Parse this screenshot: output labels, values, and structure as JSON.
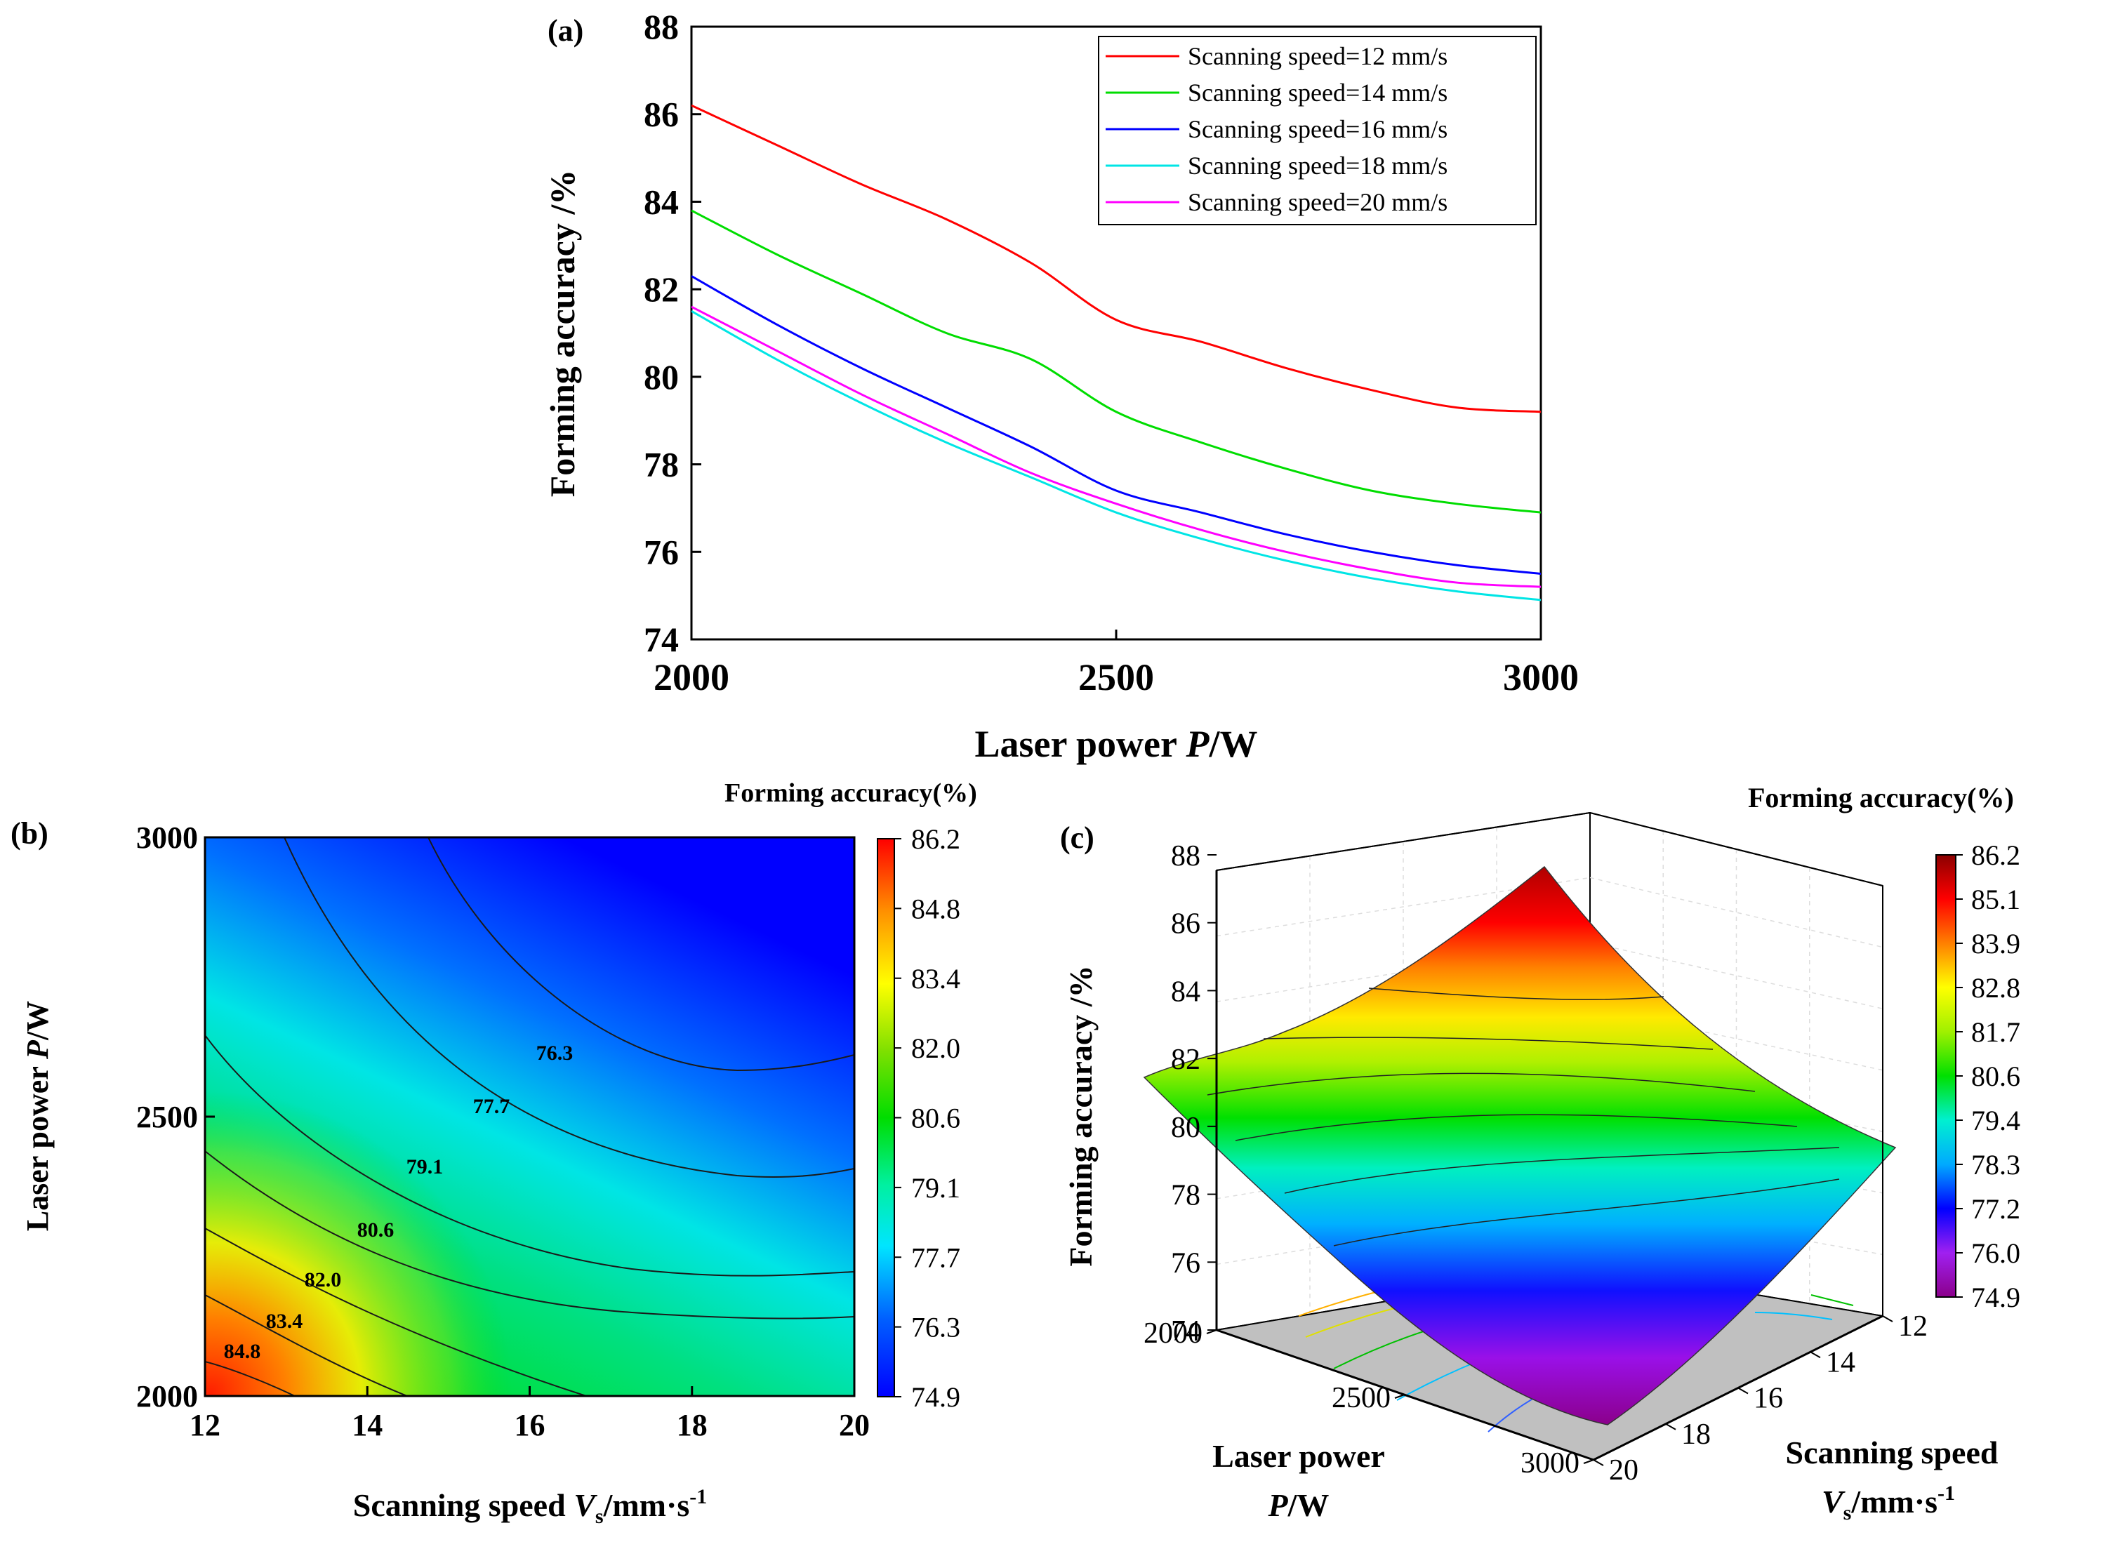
{
  "figure": {
    "panel_a": {
      "label": "(a)",
      "xlabel_main": "Laser power ",
      "xlabel_italic": "P",
      "xlabel_unit": "/W",
      "ylabel": "Forming accuracy /%",
      "x_ticks": [
        "2000",
        "2500",
        "3000"
      ],
      "y_ticks": [
        "74",
        "76",
        "78",
        "80",
        "82",
        "84",
        "86",
        "88"
      ]
    },
    "panel_b": {
      "label": "(b)",
      "colorbar_title": "Forming accuracy(%)",
      "colorbar_ticks": [
        "86.2",
        "84.8",
        "83.4",
        "82.0",
        "80.6",
        "79.1",
        "77.7",
        "76.3",
        "74.9"
      ],
      "xlabel_main": "Scanning speed ",
      "xlabel_italic": "V",
      "xlabel_sub": "s",
      "xlabel_unit": "/mm·s",
      "xlabel_sup": "-1",
      "ylabel_main": "Laser power ",
      "ylabel_italic": "P",
      "ylabel_unit": "/W",
      "x_ticks": [
        "12",
        "14",
        "16",
        "18",
        "20"
      ],
      "y_ticks": [
        "2000",
        "2500",
        "3000"
      ],
      "contour_labels": [
        "84.8",
        "83.4",
        "82.0",
        "80.6",
        "79.1",
        "77.7",
        "76.3"
      ]
    },
    "panel_c": {
      "label": "(c)",
      "colorbar_title": "Forming accuracy(%)",
      "colorbar_ticks": [
        "86.2",
        "85.1",
        "83.9",
        "82.8",
        "81.7",
        "80.6",
        "79.4",
        "78.3",
        "77.2",
        "76.0",
        "74.9"
      ],
      "zlabel": "Forming accuracy /%",
      "z_ticks": [
        "74",
        "76",
        "78",
        "80",
        "82",
        "84",
        "86",
        "88"
      ],
      "p_ticks": [
        "2000",
        "2500",
        "3000"
      ],
      "v_ticks": [
        "12",
        "14",
        "16",
        "18",
        "20"
      ],
      "p_label_1": "Laser power",
      "p_label_2_italic": "P",
      "p_label_2_unit": "/W",
      "v_label_1": "Scanning speed",
      "v_label_italic": "V",
      "v_label_sub": "s",
      "v_label_unit": "/mm·s",
      "v_label_sup": "-1"
    }
  },
  "colors": {
    "s12": "#ff0000",
    "s14": "#00dd00",
    "s16": "#0000ff",
    "s18": "#00e5e5",
    "s20": "#ff00ff",
    "floor": "#c0c0c0"
  },
  "chart_data": [
    {
      "type": "line",
      "title": "(a)",
      "xlabel": "Laser power P/W",
      "ylabel": "Forming accuracy /%",
      "xlim": [
        2000,
        3000
      ],
      "ylim": [
        74,
        88
      ],
      "x": [
        2000,
        2100,
        2200,
        2300,
        2400,
        2500,
        2600,
        2700,
        2800,
        2900,
        3000
      ],
      "series": [
        {
          "name": "Scanning speed=12 mm/s",
          "values": [
            86.2,
            85.3,
            84.4,
            83.6,
            82.6,
            81.3,
            80.8,
            80.2,
            79.7,
            79.3,
            79.2
          ]
        },
        {
          "name": "Scanning speed=14 mm/s",
          "values": [
            83.8,
            82.8,
            81.9,
            81.0,
            80.4,
            79.2,
            78.5,
            77.9,
            77.4,
            77.1,
            76.9
          ]
        },
        {
          "name": "Scanning speed=16 mm/s",
          "values": [
            82.3,
            81.2,
            80.2,
            79.3,
            78.4,
            77.4,
            76.9,
            76.4,
            76.0,
            75.7,
            75.5
          ]
        },
        {
          "name": "Scanning speed=18 mm/s",
          "values": [
            81.5,
            80.4,
            79.4,
            78.5,
            77.7,
            76.9,
            76.3,
            75.8,
            75.4,
            75.1,
            74.9
          ]
        },
        {
          "name": "Scanning speed=20 mm/s",
          "values": [
            81.6,
            80.6,
            79.6,
            78.7,
            77.8,
            77.1,
            76.5,
            76.0,
            75.6,
            75.3,
            75.2
          ]
        }
      ],
      "legend_labels": [
        "Scanning speed=12 mm/s",
        "Scanning speed=14 mm/s",
        "Scanning speed=16 mm/s",
        "Scanning speed=18 mm/s",
        "Scanning speed=20 mm/s"
      ]
    },
    {
      "type": "heatmap",
      "title": "(b)",
      "xlabel": "Scanning speed Vs/mm·s-1",
      "ylabel": "Laser power P/W",
      "xlim": [
        12,
        20
      ],
      "ylim": [
        2000,
        3000
      ],
      "zlim": [
        74.9,
        86.2
      ],
      "corner_values": {
        "v12_p2000": 86.2,
        "v20_p2000": 81.6,
        "v12_p3000": 79.2,
        "v20_p3000": 75.2
      },
      "contour_levels": [
        84.8,
        83.4,
        82.0,
        80.6,
        79.1,
        77.7,
        76.3
      ],
      "colorbar_title": "Forming accuracy(%)"
    },
    {
      "type": "surface",
      "title": "(c)",
      "xlabel": "Laser power P/W",
      "ylabel": "Scanning speed Vs/mm·s-1",
      "zlabel": "Forming accuracy /%",
      "xlim": [
        2000,
        3000
      ],
      "ylim": [
        12,
        20
      ],
      "zlim": [
        74,
        88
      ],
      "peak": {
        "p": 2000,
        "v": 12,
        "value": 86.2
      },
      "minimum": {
        "p": 3000,
        "v": 18.5,
        "value": 74.9
      },
      "colorbar_title": "Forming accuracy(%)"
    }
  ]
}
